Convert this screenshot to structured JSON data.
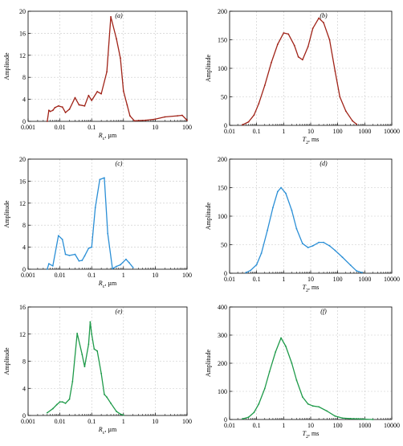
{
  "chart_data": [
    {
      "panel_label": "(a)",
      "type": "line",
      "color": "#a02318",
      "xscale": "log",
      "xlim": [
        0.001,
        100
      ],
      "ylim": [
        0,
        20
      ],
      "xticks": [
        0.001,
        0.01,
        0.1,
        1,
        10,
        100
      ],
      "xtick_labels": [
        "0.001",
        "0.01",
        "0.1",
        "1",
        "10",
        "100"
      ],
      "yticks": [
        0,
        4,
        8,
        12,
        16,
        20
      ],
      "ytick_labels": [
        "0",
        "4",
        "8",
        "12",
        "16",
        "20"
      ],
      "xlabel": "R_c, µm",
      "ylabel": "Amplitude",
      "grid": true,
      "x": [
        0.004,
        0.0045,
        0.005,
        0.006,
        0.007,
        0.009,
        0.012,
        0.015,
        0.02,
        0.03,
        0.04,
        0.06,
        0.08,
        0.1,
        0.15,
        0.2,
        0.3,
        0.4,
        0.6,
        0.8,
        1.0,
        1.3,
        1.6,
        2.2,
        3,
        5,
        10,
        20,
        50,
        70,
        100
      ],
      "y": [
        0,
        2,
        1.8,
        2.0,
        2.5,
        2.8,
        2.6,
        1.6,
        2.2,
        4.3,
        3.0,
        2.8,
        4.7,
        3.8,
        5.4,
        5.0,
        9.0,
        19.0,
        15.0,
        11.5,
        5.5,
        3.0,
        1.0,
        0.1,
        0.15,
        0.2,
        0.4,
        0.8,
        1.0,
        1.1,
        0.2
      ]
    },
    {
      "panel_label": "(b)",
      "type": "line",
      "color": "#a02318",
      "xscale": "log",
      "xlim": [
        0.01,
        10000
      ],
      "ylim": [
        0,
        200
      ],
      "xticks": [
        0.01,
        0.1,
        1,
        10,
        100,
        1000,
        10000
      ],
      "xtick_labels": [
        "0.01",
        "0.1",
        "1",
        "10",
        "100",
        "1000",
        "10000"
      ],
      "yticks": [
        0,
        50,
        100,
        150,
        200
      ],
      "ytick_labels": [
        "0",
        "50",
        "100",
        "150",
        "200"
      ],
      "xlabel": "T_2, ms",
      "ylabel": "Amplitude",
      "grid": true,
      "x": [
        0.03,
        0.05,
        0.08,
        0.12,
        0.2,
        0.35,
        0.6,
        1.0,
        1.5,
        2.5,
        3.5,
        5,
        8,
        12,
        20,
        30,
        50,
        80,
        120,
        200,
        350,
        500
      ],
      "y": [
        1,
        6,
        18,
        38,
        70,
        110,
        142,
        162,
        160,
        140,
        120,
        115,
        138,
        170,
        188,
        180,
        150,
        95,
        50,
        25,
        8,
        2
      ]
    },
    {
      "panel_label": "(c)",
      "type": "line",
      "color": "#2b8fd6",
      "xscale": "log",
      "xlim": [
        0.001,
        100
      ],
      "ylim": [
        0,
        20
      ],
      "xticks": [
        0.001,
        0.01,
        0.1,
        1,
        10,
        100
      ],
      "xtick_labels": [
        "0.001",
        "0.01",
        "0.1",
        "1",
        "10",
        "100"
      ],
      "yticks": [
        0,
        4,
        8,
        12,
        16,
        20
      ],
      "ytick_labels": [
        "0",
        "4",
        "8",
        "12",
        "16",
        "20"
      ],
      "xlabel": "R_c, µm",
      "ylabel": "Amplitude",
      "grid": true,
      "x": [
        0.004,
        0.0045,
        0.006,
        0.009,
        0.012,
        0.015,
        0.02,
        0.03,
        0.04,
        0.05,
        0.06,
        0.08,
        0.1,
        0.13,
        0.18,
        0.25,
        0.32,
        0.45,
        0.6,
        0.8,
        1.2,
        1.5,
        2.0
      ],
      "y": [
        0,
        1.0,
        0.6,
        6.1,
        5.4,
        2.7,
        2.5,
        2.7,
        1.5,
        1.6,
        2.4,
        3.8,
        4.0,
        11.2,
        16.3,
        16.6,
        6.5,
        0.1,
        0.5,
        0.8,
        1.8,
        1.2,
        0.3
      ]
    },
    {
      "panel_label": "(d)",
      "type": "line",
      "color": "#2b8fd6",
      "xscale": "log",
      "xlim": [
        0.01,
        10000
      ],
      "ylim": [
        0,
        200
      ],
      "xticks": [
        0.01,
        0.1,
        1,
        10,
        100,
        1000,
        10000
      ],
      "xtick_labels": [
        "0.01",
        "0.1",
        "1",
        "10",
        "100",
        "1000",
        "10000"
      ],
      "yticks": [
        0,
        50,
        100,
        150,
        200
      ],
      "ytick_labels": [
        "0",
        "50",
        "100",
        "150",
        "200"
      ],
      "xlabel": "T_2, ms",
      "ylabel": "Amplitude",
      "grid": true,
      "x": [
        0.04,
        0.06,
        0.1,
        0.15,
        0.25,
        0.4,
        0.6,
        0.8,
        1.2,
        2.0,
        3.0,
        5.0,
        8.0,
        12,
        20,
        30,
        50,
        80,
        150,
        300,
        500,
        800
      ],
      "y": [
        1,
        5,
        15,
        35,
        75,
        115,
        143,
        150,
        140,
        110,
        78,
        52,
        45,
        48,
        54,
        54,
        48,
        40,
        28,
        14,
        4,
        1
      ]
    },
    {
      "panel_label": "(e)",
      "type": "line",
      "color": "#1e9a49",
      "xscale": "log",
      "xlim": [
        0.001,
        100
      ],
      "ylim": [
        0,
        16
      ],
      "xticks": [
        0.001,
        0.01,
        0.1,
        1,
        10,
        100
      ],
      "xtick_labels": [
        "0.001",
        "0.01",
        "0.1",
        "1",
        "10",
        "100"
      ],
      "yticks": [
        0,
        4,
        8,
        12,
        16
      ],
      "ytick_labels": [
        "0",
        "4",
        "8",
        "12",
        "16"
      ],
      "xlabel": "R_c, µm",
      "ylabel": "Amplitude",
      "grid": true,
      "x": [
        0.004,
        0.006,
        0.008,
        0.01,
        0.012,
        0.015,
        0.02,
        0.025,
        0.035,
        0.05,
        0.06,
        0.08,
        0.09,
        0.1,
        0.12,
        0.15,
        0.2,
        0.25,
        0.3,
        0.4,
        0.6,
        0.8,
        1.0
      ],
      "y": [
        0.4,
        1.0,
        1.6,
        2.0,
        2.0,
        1.8,
        2.4,
        5.0,
        12.1,
        9.0,
        7.2,
        10.5,
        13.8,
        12.0,
        9.8,
        9.5,
        6.2,
        3.1,
        2.7,
        1.8,
        0.6,
        0.2,
        0.05
      ]
    },
    {
      "panel_label": "(f)",
      "type": "line",
      "color": "#1e9a49",
      "xscale": "log",
      "xlim": [
        0.01,
        10000
      ],
      "ylim": [
        0,
        400
      ],
      "xticks": [
        0.01,
        0.1,
        1,
        10,
        100,
        1000,
        10000
      ],
      "xtick_labels": [
        "0.01",
        "0.1",
        "1",
        "10",
        "100",
        "1000",
        "10000"
      ],
      "yticks": [
        0,
        100,
        200,
        300,
        400
      ],
      "ytick_labels": [
        "0",
        "100",
        "200",
        "300",
        "400"
      ],
      "xlabel": "T_2, ms",
      "ylabel": "Amplitude",
      "grid": true,
      "x": [
        0.03,
        0.05,
        0.08,
        0.12,
        0.2,
        0.3,
        0.5,
        0.8,
        1.2,
        2.0,
        3.0,
        5.0,
        8.0,
        12,
        20,
        40,
        80,
        150,
        300,
        600,
        1000,
        2000
      ],
      "y": [
        2,
        8,
        25,
        55,
        110,
        170,
        240,
        290,
        260,
        200,
        140,
        80,
        55,
        48,
        45,
        30,
        12,
        5,
        3,
        2,
        1,
        0
      ]
    }
  ]
}
